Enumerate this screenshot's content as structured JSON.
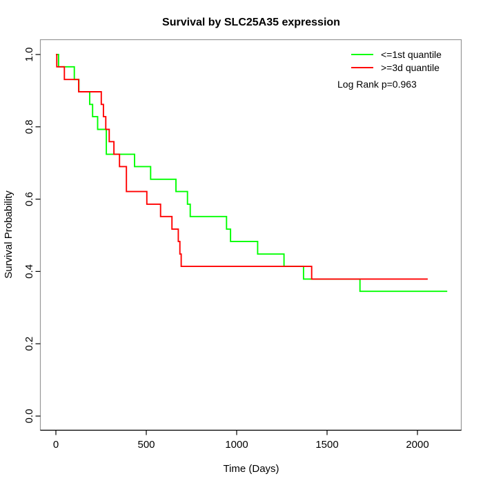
{
  "title": "Survival by SLC25A35 expression",
  "x_axis": {
    "label": "Time (Days)",
    "ticks": [
      0,
      500,
      1000,
      1500,
      2000
    ]
  },
  "y_axis": {
    "label": "Survival Probability",
    "ticks": [
      "0.0",
      "0.2",
      "0.4",
      "0.6",
      "0.8",
      "1.0"
    ]
  },
  "legend": {
    "items": [
      {
        "label": "<=1st quantile",
        "color": "#00ff00"
      },
      {
        "label": ">=3d quantile",
        "color": "#ff0000"
      }
    ],
    "annotation": "Log Rank p=0.963"
  },
  "colors": {
    "low_expression": "#00ff00",
    "high_expression": "#ff0000",
    "plot_border": "#979797",
    "axis": "#000000",
    "background": "#ffffff"
  },
  "chart_data": {
    "type": "line",
    "subtype": "kaplan-meier-step",
    "title": "Survival by SLC25A35 expression",
    "xlabel": "Time (Days)",
    "ylabel": "Survival Probability",
    "xlim": [
      0,
      2250
    ],
    "ylim": [
      0,
      1
    ],
    "grid": false,
    "legend_position": "top-right-inside",
    "annotation": "Log Rank p=0.963",
    "series": [
      {
        "name": "<=1st quantile",
        "color": "#00ff00",
        "points": [
          [
            0,
            1.0
          ],
          [
            15,
            0.966
          ],
          [
            102,
            0.931
          ],
          [
            127,
            0.897
          ],
          [
            187,
            0.862
          ],
          [
            203,
            0.828
          ],
          [
            231,
            0.793
          ],
          [
            279,
            0.724
          ],
          [
            435,
            0.69
          ],
          [
            524,
            0.655
          ],
          [
            664,
            0.621
          ],
          [
            728,
            0.586
          ],
          [
            743,
            0.552
          ],
          [
            944,
            0.517
          ],
          [
            966,
            0.483
          ],
          [
            1116,
            0.448
          ],
          [
            1262,
            0.414
          ],
          [
            1370,
            0.379
          ],
          [
            1682,
            0.345
          ],
          [
            2165,
            0.345
          ]
        ]
      },
      {
        "name": ">=3d quantile",
        "color": "#ff0000",
        "points": [
          [
            0,
            1.0
          ],
          [
            5,
            0.966
          ],
          [
            47,
            0.931
          ],
          [
            126,
            0.897
          ],
          [
            251,
            0.862
          ],
          [
            263,
            0.828
          ],
          [
            276,
            0.793
          ],
          [
            295,
            0.759
          ],
          [
            321,
            0.724
          ],
          [
            352,
            0.69
          ],
          [
            390,
            0.621
          ],
          [
            503,
            0.586
          ],
          [
            579,
            0.552
          ],
          [
            642,
            0.517
          ],
          [
            677,
            0.483
          ],
          [
            686,
            0.448
          ],
          [
            693,
            0.414
          ],
          [
            1415,
            0.379
          ],
          [
            2057,
            0.379
          ]
        ]
      }
    ]
  }
}
